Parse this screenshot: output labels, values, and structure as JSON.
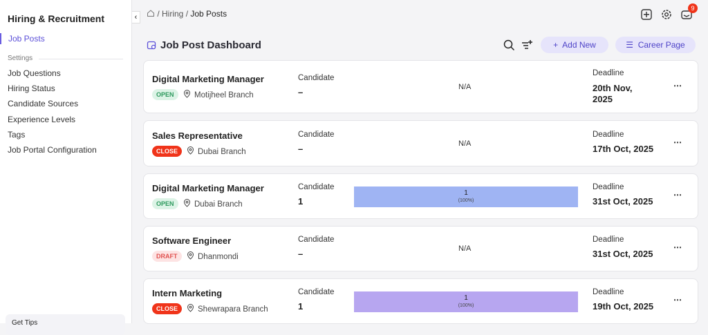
{
  "sidebar": {
    "title": "Hiring & Recruitment",
    "active": "Job Posts",
    "section": "Settings",
    "items": [
      "Job Questions",
      "Hiring Status",
      "Candidate Sources",
      "Experience Levels",
      "Tags",
      "Job Portal Configuration"
    ],
    "footer": "Get Tips"
  },
  "breadcrumb": [
    "Hiring",
    "Job Posts"
  ],
  "notification_count": 9,
  "header": {
    "title": "Job Post Dashboard",
    "add_button": "Add New",
    "career_button": "Career Page"
  },
  "jobs": [
    {
      "title": "Digital Marketing Manager",
      "status": "OPEN",
      "status_color": "#2e9a5e",
      "status_bg": "#dcf3e6",
      "location": "Motijheel Branch",
      "candidate_label": "Candidate",
      "candidate": "–",
      "progress": "N/A",
      "deadline_label": "Deadline",
      "deadline": "20th Nov, 2025"
    },
    {
      "title": "Sales Representative",
      "status": "CLOSE",
      "status_color": "#ffffff",
      "status_bg": "#f0341a",
      "location": "Dubai Branch",
      "candidate_label": "Candidate",
      "candidate": "–",
      "progress": "N/A",
      "deadline_label": "Deadline",
      "deadline": "17th Oct, 2025"
    },
    {
      "title": "Digital Marketing Manager",
      "status": "OPEN",
      "status_color": "#2e9a5e",
      "status_bg": "#dcf3e6",
      "location": "Dubai Branch",
      "candidate_label": "Candidate",
      "candidate": 1,
      "progress": {
        "count": 1,
        "share": "(100%)",
        "color": "#9fb4f3"
      },
      "deadline_label": "Deadline",
      "deadline": "31st Oct, 2025"
    },
    {
      "title": "Software Engineer",
      "status": "DRAFT",
      "status_color": "#e0514f",
      "status_bg": "#fde3e3",
      "location": "Dhanmondi",
      "candidate_label": "Candidate",
      "candidate": "–",
      "progress": "N/A",
      "deadline_label": "Deadline",
      "deadline": "31st Oct, 2025"
    },
    {
      "title": "Intern Marketing",
      "status": "CLOSE",
      "status_color": "#ffffff",
      "status_bg": "#f0341a",
      "location": "Shewrapara Branch",
      "candidate_label": "Candidate",
      "candidate": 1,
      "progress": {
        "count": 1,
        "share": "(100%)",
        "color": "#b7a6f0"
      },
      "deadline_label": "Deadline",
      "deadline": "19th Oct, 2025"
    }
  ]
}
